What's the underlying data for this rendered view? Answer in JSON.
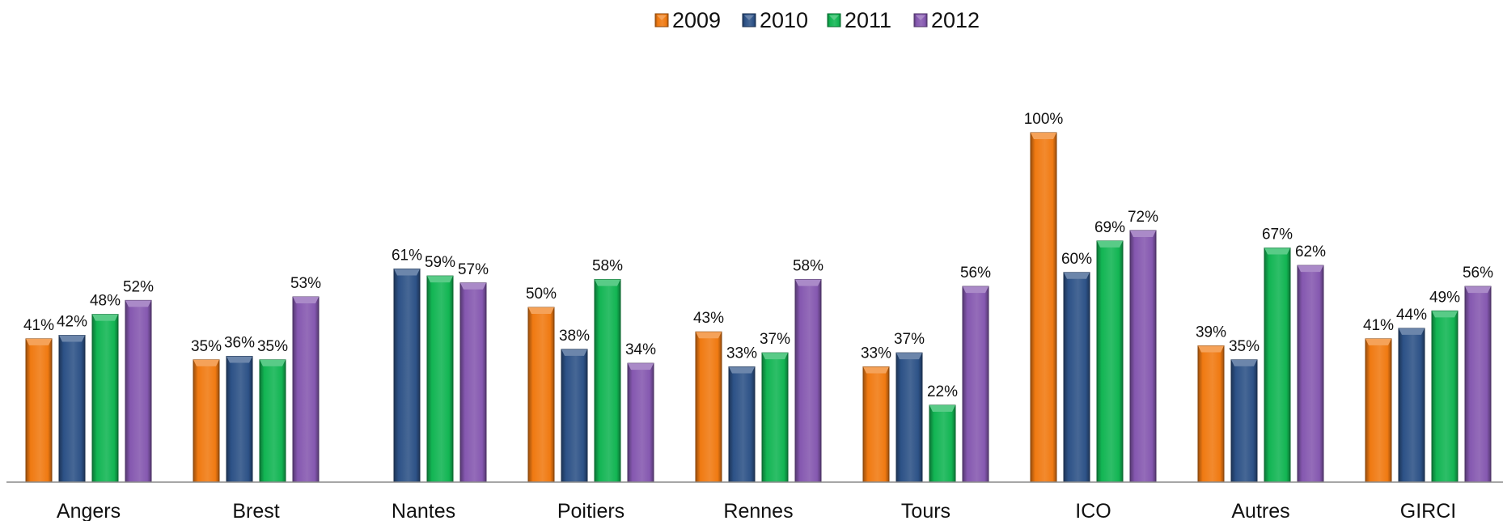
{
  "chart_data": {
    "type": "bar",
    "title": "",
    "xlabel": "",
    "ylabel": "",
    "ylim": [
      0,
      1.0
    ],
    "value_format": "percent",
    "legend_position": "top-center",
    "grid": false,
    "categories": [
      "Angers",
      "Brest",
      "Nantes",
      "Poitiers",
      "Rennes",
      "Tours",
      "ICO",
      "Autres",
      "GIRCI"
    ],
    "series": [
      {
        "name": "2009",
        "color": "#F07A12",
        "values": [
          0.41,
          0.35,
          null,
          0.5,
          0.43,
          0.33,
          1.0,
          0.39,
          0.41
        ]
      },
      {
        "name": "2010",
        "color": "#2D5287",
        "values": [
          0.42,
          0.36,
          0.61,
          0.38,
          0.33,
          0.37,
          0.6,
          0.35,
          0.44
        ]
      },
      {
        "name": "2011",
        "color": "#12B553",
        "values": [
          0.48,
          0.35,
          0.59,
          0.58,
          0.37,
          0.22,
          0.69,
          0.67,
          0.49
        ]
      },
      {
        "name": "2012",
        "color": "#8558B0",
        "values": [
          0.52,
          0.53,
          0.57,
          0.34,
          0.58,
          0.56,
          0.72,
          0.62,
          0.56
        ]
      }
    ]
  }
}
